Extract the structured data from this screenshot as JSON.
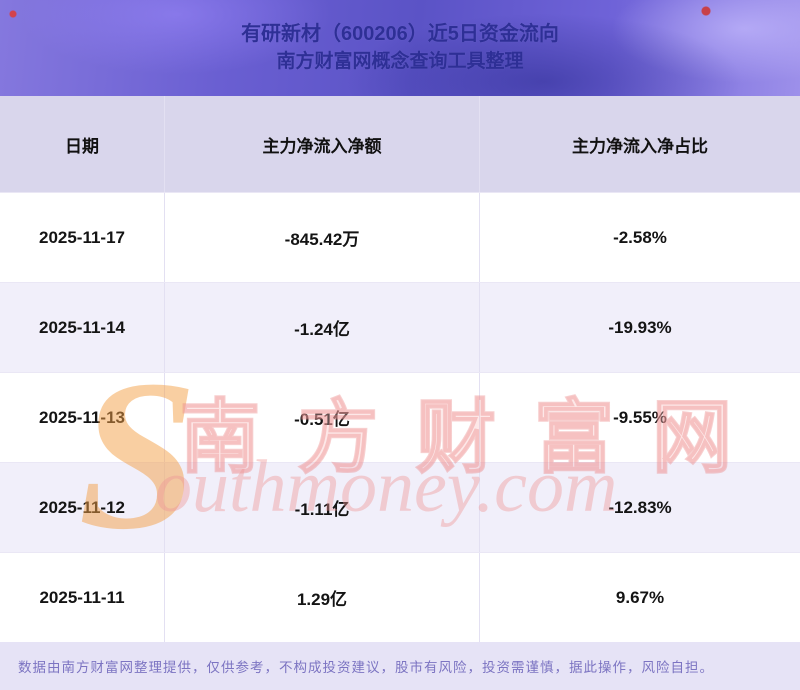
{
  "header": {
    "title_line1": "有研新材（600206）近5日资金流向",
    "title_line2": "南方财富网概念查询工具整理"
  },
  "chart_data": {
    "type": "table",
    "title": "有研新材（600206）近5日资金流向",
    "subtitle": "南方财富网概念查询工具整理",
    "columns": [
      "日期",
      "主力净流入净额",
      "主力净流入净占比"
    ],
    "rows": [
      {
        "date": "2025-11-17",
        "net_inflow": "-845.42万",
        "net_inflow_pct": "-2.58%"
      },
      {
        "date": "2025-11-14",
        "net_inflow": "-1.24亿",
        "net_inflow_pct": "-19.93%"
      },
      {
        "date": "2025-11-13",
        "net_inflow": "-0.51亿",
        "net_inflow_pct": "-9.55%"
      },
      {
        "date": "2025-11-12",
        "net_inflow": "-1.11亿",
        "net_inflow_pct": "-12.83%"
      },
      {
        "date": "2025-11-11",
        "net_inflow": "1.29亿",
        "net_inflow_pct": "9.67%"
      }
    ]
  },
  "watermark": {
    "initial": "S",
    "cn_text": "南方财富网",
    "en_text": "outhmoney.com"
  },
  "footer": {
    "disclaimer": "数据由南方财富网整理提供，仅供参考，不构成投资建议，股市有风险，投资需谨慎，据此操作，风险自担。"
  },
  "colors": {
    "title": "#2e2f96",
    "header_row_bg": "#d9d6ec",
    "row_alt_bg": "#f1effa",
    "footer_bg": "#e6e3f6",
    "footer_text": "#7c74c2",
    "watermark_pink": "#ee9696",
    "watermark_orange": "#f3a046"
  }
}
